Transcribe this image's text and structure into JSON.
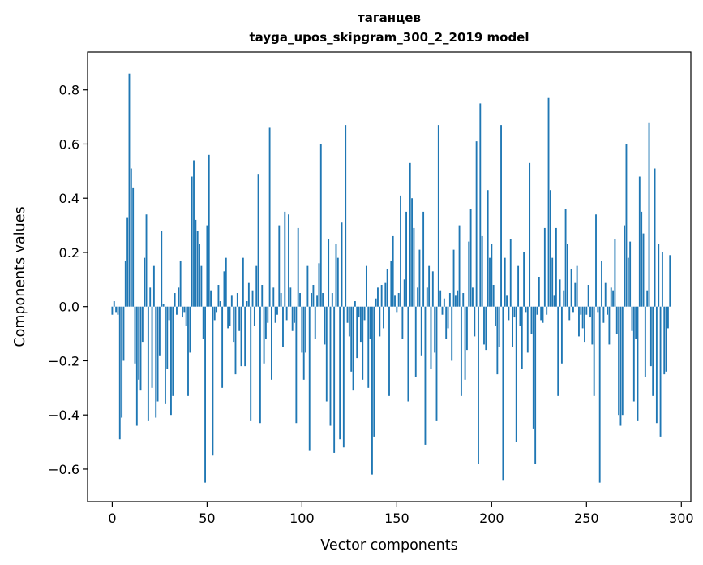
{
  "chart_data": {
    "type": "bar",
    "title": "таганцев",
    "subtitle": "tayga_upos_skipgram_300_2_2019 model",
    "xlabel": "Vector components",
    "ylabel": "Components values",
    "xlim": [
      -13,
      305
    ],
    "ylim": [
      -0.72,
      0.94
    ],
    "x_ticks": [
      0,
      50,
      100,
      150,
      200,
      250,
      300
    ],
    "x_tick_labels": [
      "0",
      "50",
      "100",
      "150",
      "200",
      "250",
      "300"
    ],
    "y_ticks": [
      0.8,
      0.6,
      0.4,
      0.2,
      0.0,
      -0.2,
      -0.4,
      -0.6
    ],
    "y_tick_labels": [
      "0.8",
      "0.6",
      "0.4",
      "0.2",
      "0.0",
      "−0.2",
      "−0.4",
      "−0.6"
    ],
    "bar_color": "#1f77b4",
    "grid": false,
    "values": [
      -0.03,
      0.02,
      -0.02,
      -0.03,
      -0.49,
      -0.41,
      -0.2,
      0.17,
      0.33,
      0.86,
      0.51,
      0.44,
      -0.21,
      -0.44,
      -0.27,
      -0.31,
      -0.13,
      0.18,
      0.34,
      -0.42,
      0.07,
      -0.3,
      0.15,
      -0.41,
      -0.35,
      -0.18,
      0.28,
      0.01,
      -0.36,
      -0.23,
      -0.05,
      -0.4,
      -0.33,
      0.05,
      -0.03,
      0.07,
      0.17,
      -0.04,
      -0.02,
      -0.07,
      -0.33,
      -0.17,
      0.48,
      0.54,
      0.32,
      0.28,
      0.23,
      0.15,
      -0.12,
      -0.65,
      0.3,
      0.56,
      0.06,
      -0.55,
      -0.05,
      -0.02,
      0.08,
      0.02,
      -0.3,
      0.13,
      0.18,
      -0.08,
      -0.07,
      0.04,
      -0.13,
      -0.25,
      0.05,
      -0.09,
      -0.22,
      0.18,
      -0.22,
      0.02,
      0.09,
      -0.42,
      0.06,
      -0.07,
      0.15,
      0.49,
      -0.43,
      0.08,
      -0.21,
      -0.12,
      -0.06,
      0.66,
      -0.27,
      0.07,
      -0.06,
      -0.03,
      0.3,
      0.05,
      -0.15,
      0.35,
      -0.05,
      0.34,
      0.07,
      -0.09,
      -0.06,
      -0.43,
      0.29,
      0.05,
      -0.17,
      -0.27,
      -0.17,
      0.15,
      -0.53,
      0.05,
      0.08,
      -0.12,
      0.04,
      0.16,
      0.6,
      0.05,
      -0.14,
      -0.35,
      0.25,
      -0.44,
      0.05,
      -0.54,
      0.23,
      0.18,
      -0.49,
      0.31,
      -0.52,
      0.67,
      -0.06,
      -0.11,
      -0.24,
      -0.31,
      0.02,
      -0.19,
      -0.04,
      -0.13,
      -0.27,
      -0.05,
      0.15,
      -0.3,
      -0.12,
      -0.62,
      -0.48,
      0.03,
      0.07,
      -0.11,
      0.08,
      -0.08,
      0.09,
      0.14,
      -0.33,
      0.17,
      0.26,
      0.04,
      -0.02,
      0.05,
      0.41,
      -0.12,
      0.1,
      0.35,
      -0.35,
      0.53,
      0.4,
      0.29,
      -0.26,
      0.07,
      0.21,
      -0.18,
      0.35,
      -0.51,
      0.07,
      0.15,
      -0.23,
      0.13,
      -0.17,
      -0.42,
      0.67,
      0.06,
      -0.03,
      0.03,
      -0.12,
      -0.08,
      0.05,
      -0.2,
      0.21,
      0.04,
      0.06,
      0.3,
      -0.33,
      0.05,
      -0.27,
      -0.16,
      0.24,
      0.36,
      0.07,
      -0.11,
      0.61,
      -0.58,
      0.75,
      0.26,
      -0.14,
      -0.16,
      0.43,
      0.18,
      0.23,
      0.08,
      -0.07,
      -0.25,
      -0.15,
      0.67,
      -0.64,
      0.18,
      0.04,
      -0.05,
      0.25,
      -0.15,
      -0.04,
      -0.5,
      0.15,
      -0.07,
      -0.23,
      0.2,
      -0.02,
      -0.17,
      0.53,
      -0.1,
      -0.45,
      -0.58,
      -0.03,
      0.11,
      -0.05,
      -0.06,
      0.29,
      -0.03,
      0.77,
      0.43,
      0.18,
      0.04,
      0.29,
      -0.33,
      0.1,
      -0.21,
      0.06,
      0.36,
      0.23,
      -0.05,
      0.14,
      -0.02,
      0.09,
      0.15,
      -0.11,
      -0.03,
      -0.08,
      -0.13,
      -0.03,
      0.08,
      -0.04,
      -0.14,
      -0.33,
      0.34,
      -0.02,
      -0.65,
      0.17,
      -0.06,
      0.09,
      -0.03,
      -0.14,
      0.07,
      0.06,
      0.25,
      -0.1,
      -0.4,
      -0.44,
      -0.4,
      0.3,
      0.6,
      0.18,
      0.24,
      -0.09,
      -0.35,
      -0.12,
      -0.42,
      0.48,
      0.35,
      0.27,
      -0.26,
      0.06,
      0.68,
      -0.22,
      -0.33,
      0.51,
      -0.43,
      0.23,
      -0.48,
      0.2,
      -0.25,
      -0.24,
      -0.08,
      0.19
    ]
  }
}
